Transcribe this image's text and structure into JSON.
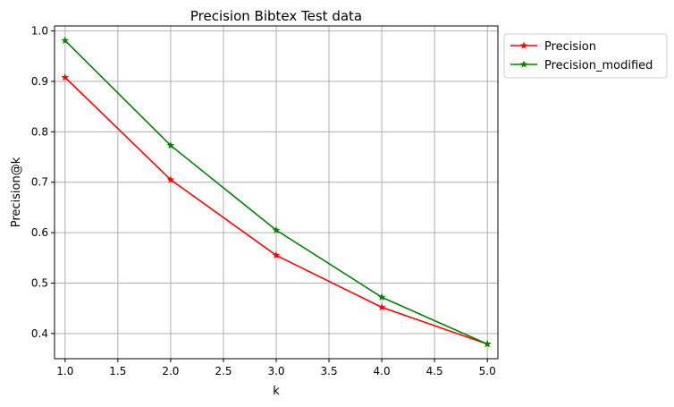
{
  "chart_data": {
    "type": "line",
    "title": "Precision Bibtex Test data",
    "xlabel": "k",
    "ylabel": "Precision@k",
    "xlim": [
      0.9,
      5.1
    ],
    "ylim": [
      0.35,
      1.01
    ],
    "xticks": [
      1.0,
      1.5,
      2.0,
      2.5,
      3.0,
      3.5,
      4.0,
      4.5,
      5.0
    ],
    "yticks": [
      0.4,
      0.5,
      0.6,
      0.7,
      0.8,
      0.9,
      1.0
    ],
    "grid": true,
    "legend_position": "outside-top-right",
    "x": [
      1,
      2,
      3,
      4,
      5
    ],
    "series": [
      {
        "name": "Precision",
        "color": "#ff0000",
        "marker": "star",
        "values": [
          0.908,
          0.705,
          0.555,
          0.452,
          0.379
        ]
      },
      {
        "name": "Precision_modified",
        "color": "#008000",
        "marker": "star",
        "values": [
          0.981,
          0.773,
          0.605,
          0.472,
          0.379
        ]
      }
    ]
  }
}
